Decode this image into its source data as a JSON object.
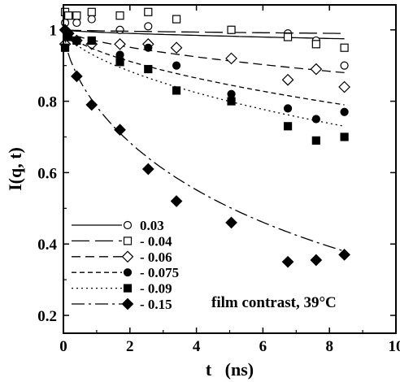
{
  "chart_data": {
    "type": "scatter",
    "xlabel": "t   (ns)",
    "ylabel": "I(q, t)",
    "xlim": [
      0,
      10
    ],
    "ylim": [
      0.15,
      1.07
    ],
    "xticks": [
      0,
      2,
      4,
      6,
      8,
      10
    ],
    "yticks": [
      0.2,
      0.4,
      0.6,
      0.8,
      1.0
    ],
    "xtick_labels": [
      "0",
      "2",
      "4",
      "6",
      "8",
      "10"
    ],
    "ytick_labels": [
      "0.2",
      "0.4",
      "0.6",
      "0.8",
      "1"
    ],
    "legend_placement": "lower-left",
    "annotation": "film contrast, 39°C",
    "grid": false,
    "series": [
      {
        "name": "0.03",
        "marker": "open-circle",
        "line_style": "solid",
        "x": [
          0.05,
          0.15,
          0.4,
          0.85,
          1.7,
          2.55,
          3.4,
          5.05,
          6.75,
          7.6,
          8.45
        ],
        "y": [
          1.02,
          1.04,
          1.02,
          1.03,
          1.0,
          1.01,
          1.03,
          1.0,
          0.99,
          0.97,
          0.9
        ],
        "fit_x": [
          0,
          8.45
        ],
        "fit_y": [
          1.0,
          0.975
        ]
      },
      {
        "name": "0.04",
        "marker": "open-square",
        "line_style": "long-dash",
        "x": [
          0.05,
          0.15,
          0.4,
          0.85,
          1.7,
          2.55,
          3.4,
          5.05,
          6.75,
          7.6,
          8.45
        ],
        "y": [
          1.05,
          1.04,
          1.04,
          1.05,
          1.04,
          1.05,
          1.03,
          1.0,
          0.98,
          0.96,
          0.95
        ],
        "fit_x": [
          0,
          8.45
        ],
        "fit_y": [
          1.0,
          0.99
        ]
      },
      {
        "name": "0.06",
        "marker": "open-diamond",
        "line_style": "dash",
        "x": [
          0.05,
          0.15,
          0.4,
          0.85,
          1.7,
          2.55,
          3.4,
          5.05,
          6.75,
          7.6,
          8.45
        ],
        "y": [
          0.96,
          0.99,
          0.97,
          0.96,
          0.96,
          0.96,
          0.95,
          0.92,
          0.86,
          0.89,
          0.84
        ],
        "fit_x": [
          0,
          8.45
        ],
        "fit_y": [
          1.0,
          0.88
        ]
      },
      {
        "name": "0.075",
        "marker": "filled-circle",
        "line_style": "short-dash",
        "x": [
          0.05,
          0.15,
          0.4,
          0.85,
          1.7,
          2.55,
          3.4,
          5.05,
          6.75,
          7.6,
          8.45
        ],
        "y": [
          0.95,
          0.98,
          0.97,
          0.97,
          0.93,
          0.95,
          0.9,
          0.82,
          0.78,
          0.75,
          0.77
        ],
        "fit_x": [
          0,
          8.45
        ],
        "fit_y": [
          1.0,
          0.79
        ]
      },
      {
        "name": "0.09",
        "marker": "filled-square",
        "line_style": "dot",
        "x": [
          0.05,
          0.15,
          0.4,
          0.85,
          1.7,
          2.55,
          3.4,
          5.05,
          6.75,
          7.6,
          8.45
        ],
        "y": [
          0.95,
          0.98,
          0.97,
          0.97,
          0.91,
          0.89,
          0.83,
          0.8,
          0.73,
          0.69,
          0.7
        ],
        "fit_x": [
          0,
          8.45
        ],
        "fit_y": [
          1.0,
          0.73
        ]
      },
      {
        "name": "0.15",
        "marker": "filled-diamond",
        "line_style": "dash-dot",
        "x": [
          0.05,
          0.15,
          0.4,
          0.85,
          1.7,
          2.55,
          3.4,
          5.05,
          6.75,
          7.6,
          8.45
        ],
        "y": [
          1.0,
          0.99,
          0.87,
          0.79,
          0.72,
          0.61,
          0.52,
          0.46,
          0.35,
          0.355,
          0.37
        ],
        "fit_x": [
          0,
          8.45
        ],
        "fit_y": [
          1.0,
          0.38
        ]
      }
    ],
    "legend_labels": [
      "0.03",
      "- 0.04",
      "- 0.06",
      "- 0.075",
      "- 0.09",
      "- 0.15"
    ]
  }
}
